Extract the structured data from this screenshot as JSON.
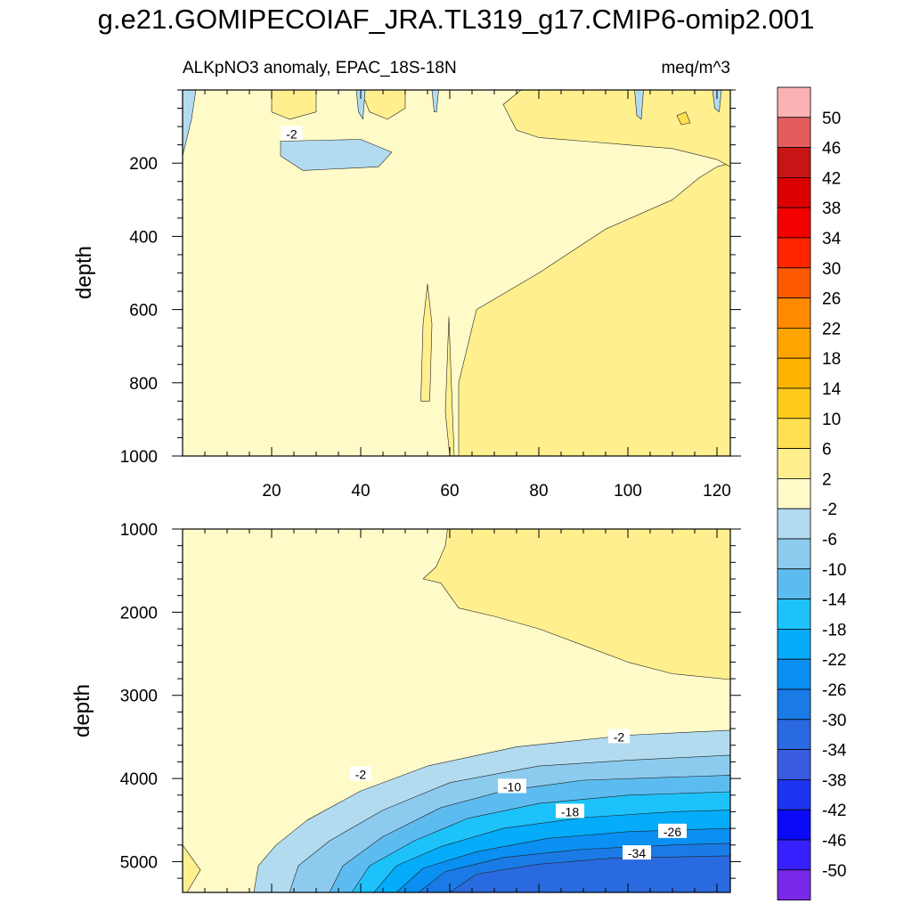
{
  "chart_data": {
    "type": "contour",
    "title": "g.e21.GOMIPECOIAF_JRA.TL319_g17.CMIP6-omip2.001",
    "subtitle_left": "ALKpNO3 anomaly, EPAC_18S-18N",
    "subtitle_right": "meq/m^3",
    "colorbar": {
      "labels": [
        "50",
        "46",
        "42",
        "38",
        "34",
        "30",
        "26",
        "22",
        "18",
        "14",
        "10",
        "6",
        "2",
        "-2",
        "-6",
        "-10",
        "-14",
        "-18",
        "-22",
        "-26",
        "-30",
        "-34",
        "-38",
        "-42",
        "-46",
        "-50"
      ],
      "colors": [
        "#fbb2b4",
        "#e45d5d",
        "#c81416",
        "#dc0000",
        "#f40000",
        "#ff2600",
        "#ff5a00",
        "#ff8a00",
        "#ffa500",
        "#ffb400",
        "#ffcc1c",
        "#ffe052",
        "#ffef8e",
        "#fffbc9",
        "#b3dbf0",
        "#8ccbee",
        "#5cbcf0",
        "#1ec2fa",
        "#04acfa",
        "#0a8ff2",
        "#1a7be6",
        "#2a6ae0",
        "#3a5ce0",
        "#1d35f0",
        "#0a0af8",
        "#3820ff",
        "#7a28e8"
      ]
    },
    "panels": [
      {
        "name": "upper",
        "xlabel": "",
        "ylabel": "depth",
        "xlim": [
          0,
          123
        ],
        "ylim": [
          1000,
          0
        ],
        "xticks": [
          20,
          40,
          60,
          80,
          100,
          120
        ],
        "yticks": [
          200,
          400,
          600,
          800,
          1000
        ],
        "contour_labels": [
          {
            "text": "-2",
            "x": 24.5,
            "depth": 120
          }
        ],
        "regions": [
          {
            "level": "-2 to 2",
            "polygon": [
              [
                0,
                0
              ],
              [
                123,
                0
              ],
              [
                123,
                1000
              ],
              [
                0,
                1000
              ]
            ]
          },
          {
            "level": "2 to 6",
            "polygon": [
              [
                62,
                1000
              ],
              [
                62,
                800
              ],
              [
                66,
                600
              ],
              [
                80,
                500
              ],
              [
                95,
                380
              ],
              [
                110,
                300
              ],
              [
                116,
                240
              ],
              [
                120,
                210
              ],
              [
                123,
                200
              ],
              [
                123,
                1000
              ]
            ]
          },
          {
            "level": "2 to 6",
            "polygon": [
              [
                60,
                1000
              ],
              [
                59,
                880
              ],
              [
                59.8,
                620
              ],
              [
                60.6,
                880
              ],
              [
                61,
                1000
              ]
            ]
          },
          {
            "level": "2 to 6",
            "polygon": [
              [
                53.5,
                850
              ],
              [
                54,
                640
              ],
              [
                55,
                530
              ],
              [
                56,
                640
              ],
              [
                55.5,
                850
              ]
            ]
          },
          {
            "level": "2 to 6",
            "polygon": [
              [
                76,
                0
              ],
              [
                123,
                0
              ],
              [
                123,
                210
              ],
              [
                120,
                190
              ],
              [
                110,
                160
              ],
              [
                100,
                150
              ],
              [
                90,
                140
              ],
              [
                80,
                130
              ],
              [
                75,
                110
              ],
              [
                72,
                40
              ]
            ]
          },
          {
            "level": "2 to 6",
            "polygon": [
              [
                20,
                0
              ],
              [
                30,
                0
              ],
              [
                30,
                60
              ],
              [
                24,
                80
              ],
              [
                20,
                60
              ]
            ]
          },
          {
            "level": "2 to 6",
            "polygon": [
              [
                40,
                0
              ],
              [
                50,
                0
              ],
              [
                50,
                50
              ],
              [
                46,
                80
              ],
              [
                42,
                60
              ]
            ]
          },
          {
            "level": "-6 to -2",
            "polygon": [
              [
                0,
                0
              ],
              [
                3,
                0
              ],
              [
                2,
                80
              ],
              [
                0,
                180
              ]
            ]
          },
          {
            "level": "-6 to -2",
            "polygon": [
              [
                22,
                140
              ],
              [
                40,
                135
              ],
              [
                47,
                170
              ],
              [
                44,
                210
              ],
              [
                27,
                220
              ],
              [
                22,
                180
              ]
            ]
          },
          {
            "level": "-6 to -2",
            "polygon": [
              [
                39,
                0
              ],
              [
                41,
                0
              ],
              [
                40.5,
                80
              ],
              [
                39.5,
                60
              ]
            ]
          },
          {
            "level": "-6 to -2",
            "polygon": [
              [
                56,
                0
              ],
              [
                57.5,
                0
              ],
              [
                57,
                60
              ],
              [
                56.5,
                60
              ]
            ]
          },
          {
            "level": "-6 to -2",
            "polygon": [
              [
                101.5,
                0
              ],
              [
                103.5,
                0
              ],
              [
                103,
                80
              ],
              [
                102,
                70
              ]
            ]
          },
          {
            "level": "-6 to -2",
            "polygon": [
              [
                119,
                0
              ],
              [
                121,
                0
              ],
              [
                120.5,
                60
              ],
              [
                119.5,
                50
              ]
            ]
          },
          {
            "level": "6 to 10",
            "polygon": [
              [
                111,
                70
              ],
              [
                113,
                60
              ],
              [
                114,
                90
              ],
              [
                112,
                95
              ]
            ]
          }
        ]
      },
      {
        "name": "lower",
        "xlabel": "",
        "ylabel": "depth",
        "xlim": [
          0,
          123
        ],
        "ylim": [
          1000,
          5370
        ],
        "xticks": [
          20,
          40,
          60,
          80,
          100,
          120
        ],
        "yticks": [
          1000,
          2000,
          3000,
          4000,
          5000
        ],
        "contour_labels": [
          {
            "text": "-2",
            "x": 98,
            "depth": 3500
          },
          {
            "text": "-2",
            "x": 40,
            "depth": 3950
          },
          {
            "text": "-10",
            "x": 74,
            "depth": 4100
          },
          {
            "text": "-18",
            "x": 87,
            "depth": 4400
          },
          {
            "text": "-26",
            "x": 110,
            "depth": 4640
          },
          {
            "text": "-34",
            "x": 102,
            "depth": 4900
          }
        ],
        "regions": [
          {
            "level": "-2 to 2",
            "polygon": [
              [
                0,
                1000
              ],
              [
                123,
                1000
              ],
              [
                123,
                5370
              ],
              [
                0,
                5370
              ]
            ]
          },
          {
            "level": "2 to 6",
            "polygon": [
              [
                59.5,
                1000
              ],
              [
                123,
                1000
              ],
              [
                123,
                2810
              ],
              [
                110,
                2740
              ],
              [
                100,
                2600
              ],
              [
                90,
                2400
              ],
              [
                80,
                2200
              ],
              [
                70,
                2050
              ],
              [
                62,
                1950
              ],
              [
                58,
                1650
              ],
              [
                54,
                1600
              ],
              [
                57,
                1450
              ],
              [
                59,
                1200
              ]
            ]
          },
          {
            "level": "-6 to -2",
            "polygon": [
              [
                16,
                5370
              ],
              [
                17,
                5050
              ],
              [
                21,
                4800
              ],
              [
                28,
                4500
              ],
              [
                40,
                4150
              ],
              [
                55,
                3850
              ],
              [
                75,
                3620
              ],
              [
                100,
                3480
              ],
              [
                123,
                3420
              ],
              [
                123,
                5370
              ]
            ]
          },
          {
            "level": "-10 to -6",
            "polygon": [
              [
                24,
                5370
              ],
              [
                26,
                5050
              ],
              [
                33,
                4750
              ],
              [
                45,
                4380
              ],
              [
                60,
                4050
              ],
              [
                80,
                3850
              ],
              [
                100,
                3780
              ],
              [
                123,
                3720
              ],
              [
                123,
                5370
              ]
            ]
          },
          {
            "level": "-14 to -10",
            "polygon": [
              [
                33,
                5370
              ],
              [
                36,
                5050
              ],
              [
                45,
                4700
              ],
              [
                58,
                4350
              ],
              [
                72,
                4150
              ],
              [
                90,
                4020
              ],
              [
                123,
                3960
              ],
              [
                123,
                5370
              ]
            ]
          },
          {
            "level": "-18 to -14",
            "polygon": [
              [
                38,
                5370
              ],
              [
                42,
                5050
              ],
              [
                52,
                4750
              ],
              [
                64,
                4480
              ],
              [
                80,
                4300
              ],
              [
                100,
                4200
              ],
              [
                123,
                4160
              ],
              [
                123,
                5370
              ]
            ]
          },
          {
            "level": "-22 to -18",
            "polygon": [
              [
                43,
                5370
              ],
              [
                48,
                5050
              ],
              [
                58,
                4820
              ],
              [
                72,
                4600
              ],
              [
                90,
                4470
              ],
              [
                110,
                4400
              ],
              [
                123,
                4380
              ],
              [
                123,
                5370
              ]
            ]
          },
          {
            "level": "-26 to -22",
            "polygon": [
              [
                48,
                5370
              ],
              [
                54,
                5080
              ],
              [
                66,
                4880
              ],
              [
                82,
                4720
              ],
              [
                100,
                4640
              ],
              [
                123,
                4600
              ],
              [
                123,
                5370
              ]
            ]
          },
          {
            "level": "-30 to -26",
            "polygon": [
              [
                53,
                5370
              ],
              [
                59,
                5120
              ],
              [
                72,
                4950
              ],
              [
                90,
                4850
              ],
              [
                110,
                4800
              ],
              [
                123,
                4780
              ],
              [
                123,
                5370
              ]
            ]
          },
          {
            "level": "-34 to -30",
            "polygon": [
              [
                60,
                5370
              ],
              [
                66,
                5150
              ],
              [
                80,
                5030
              ],
              [
                96,
                4960
              ],
              [
                123,
                4930
              ],
              [
                123,
                5370
              ]
            ]
          },
          {
            "level": "2 to 6",
            "polygon": [
              [
                0,
                4800
              ],
              [
                4,
                5100
              ],
              [
                1,
                5370
              ],
              [
                0,
                5370
              ]
            ]
          }
        ]
      }
    ]
  }
}
